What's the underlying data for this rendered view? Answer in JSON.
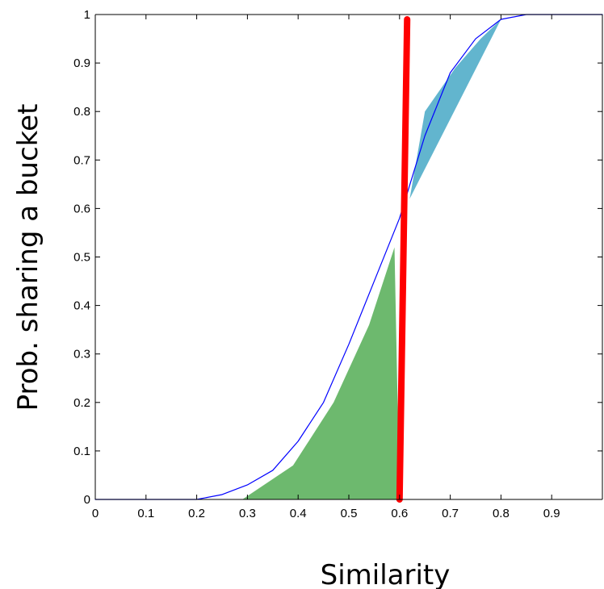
{
  "chart_data": {
    "type": "line",
    "title": "",
    "xlabel": "Similarity",
    "ylabel": "Prob. sharing a bucket",
    "xlim": [
      0,
      1
    ],
    "ylim": [
      0,
      1
    ],
    "grid": false,
    "x_ticks": [
      0,
      0.1,
      0.2,
      0.3,
      0.4,
      0.5,
      0.6,
      0.7,
      0.8,
      0.9
    ],
    "x_tick_labels": [
      "0",
      "0.1",
      "0.2",
      "0.3",
      "0.4",
      "0.5",
      "0.6",
      "0.7",
      "0.8",
      "0.9"
    ],
    "y_ticks": [
      0,
      0.1,
      0.2,
      0.3,
      0.4,
      0.5,
      0.6,
      0.7,
      0.8,
      0.9,
      1
    ],
    "y_tick_labels": [
      "0",
      "0.1",
      "0.2",
      "0.3",
      "0.4",
      "0.5",
      "0.6",
      "0.7",
      "0.8",
      "0.9",
      "1"
    ],
    "series": [
      {
        "type": "line",
        "color": "#0000ff",
        "x": [
          0,
          0.1,
          0.2,
          0.25,
          0.3,
          0.35,
          0.4,
          0.45,
          0.5,
          0.55,
          0.6,
          0.65,
          0.7,
          0.75,
          0.8,
          0.85,
          0.9,
          1.0
        ],
        "y": [
          0,
          0,
          0,
          0.01,
          0.03,
          0.06,
          0.12,
          0.2,
          0.32,
          0.45,
          0.58,
          0.75,
          0.88,
          0.95,
          0.99,
          1.0,
          1.0,
          1.0
        ]
      },
      {
        "type": "line",
        "color": "#ff0000",
        "x": [
          0.6,
          0.615
        ],
        "y": [
          0,
          0.99
        ]
      }
    ],
    "regions": [
      {
        "type": "area",
        "color": "#6db96e",
        "x": [
          0.29,
          0.39,
          0.47,
          0.54,
          0.59,
          0.6
        ],
        "y": [
          0,
          0.07,
          0.2,
          0.36,
          0.52,
          0
        ]
      },
      {
        "type": "area",
        "color": "#62b5ce",
        "x": [
          0.62,
          0.65,
          0.71,
          0.76,
          0.8
        ],
        "y": [
          0.62,
          0.8,
          0.89,
          0.95,
          0.99
        ]
      }
    ]
  }
}
